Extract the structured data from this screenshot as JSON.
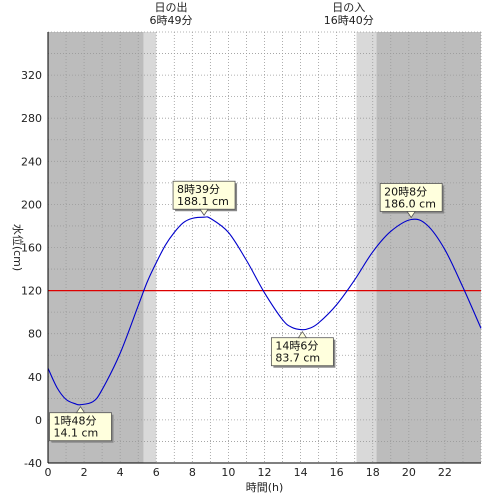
{
  "chart_data": {
    "type": "line",
    "title": "",
    "xlabel": "時間(h)",
    "ylabel": "水位(cm)",
    "xlim": [
      0,
      24
    ],
    "ylim": [
      -40,
      360
    ],
    "x_ticks": [
      0,
      2,
      4,
      6,
      8,
      10,
      12,
      14,
      16,
      18,
      20,
      22
    ],
    "y_ticks": [
      -40,
      0,
      40,
      80,
      120,
      160,
      200,
      240,
      280,
      320
    ],
    "grid": "dotted",
    "series": [
      {
        "color": "#0000cc",
        "x": [
          0,
          0.5,
          1.0,
          1.5,
          1.8,
          2.5,
          3.0,
          4.0,
          5.0,
          5.5,
          6.0,
          6.5,
          7.0,
          7.5,
          8.0,
          8.65,
          9.0,
          10.0,
          11.0,
          12.0,
          13.0,
          13.5,
          14.1,
          14.5,
          15.0,
          16.0,
          17.0,
          18.0,
          19.0,
          20.13,
          21.0,
          22.0,
          23.0,
          24.0
        ],
        "values": [
          48,
          30,
          19,
          15,
          14.1,
          17,
          28,
          62,
          106,
          128,
          146,
          162,
          174,
          183,
          187,
          188.1,
          187,
          174,
          148,
          118,
          93,
          86,
          83.7,
          85,
          90,
          107,
          130,
          156,
          175,
          186.0,
          181,
          158,
          123,
          85
        ]
      }
    ],
    "reference_line": {
      "y": 120,
      "color": "#dd0000"
    },
    "shading": {
      "night_color": "#bcbcbc",
      "twilight_color": "#d9d9d9",
      "night": [
        [
          0,
          5.3
        ],
        [
          18.2,
          24
        ]
      ],
      "twilight": [
        [
          5.3,
          6.0
        ],
        [
          17.1,
          18.2
        ]
      ]
    },
    "sun_events": [
      {
        "x": 6.82,
        "label": "日の出",
        "time": "6時49分"
      },
      {
        "x": 16.67,
        "label": "日の入",
        "time": "16時40分"
      }
    ],
    "callouts": [
      {
        "x": 1.8,
        "y": 14.1,
        "time": "1時48分",
        "value": "14.1 cm",
        "position": "below"
      },
      {
        "x": 8.65,
        "y": 188.1,
        "time": "8時39分",
        "value": "188.1 cm",
        "position": "above"
      },
      {
        "x": 14.1,
        "y": 83.7,
        "time": "14時6分",
        "value": "83.7 cm",
        "position": "below"
      },
      {
        "x": 20.13,
        "y": 186.0,
        "time": "20時8分",
        "value": "186.0 cm",
        "position": "above"
      }
    ]
  }
}
